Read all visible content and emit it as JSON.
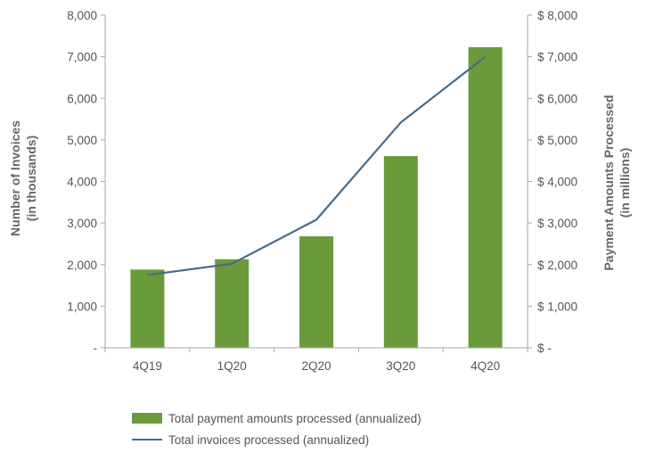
{
  "chart_data": {
    "type": "bar",
    "categories": [
      "4Q19",
      "1Q20",
      "2Q20",
      "3Q20",
      "4Q20"
    ],
    "series": [
      {
        "name": "Total payment amounts processed (annualized)",
        "type": "bar",
        "axis": "right",
        "values": [
          1880,
          2130,
          2680,
          4610,
          7230
        ],
        "color": "#6A9A3A"
      },
      {
        "name": "Total invoices processed (annualized)",
        "type": "line",
        "axis": "left",
        "values": [
          1750,
          2020,
          3080,
          5420,
          7000
        ],
        "color": "#4A6B86"
      }
    ],
    "y_left": {
      "label_line1": "Number of Invoices",
      "label_line2": "(in thousands)",
      "ylim": [
        0,
        8000
      ],
      "ticks": [
        "-",
        "1,000",
        "2,000",
        "3,000",
        "4,000",
        "5,000",
        "6,000",
        "7,000",
        "8,000"
      ]
    },
    "y_right": {
      "label_line1": "Payment Amounts Processed",
      "label_line2": "(in millions)",
      "ylim": [
        0,
        8000
      ],
      "currency": "$",
      "ticks": [
        "-",
        "1,000",
        "2,000",
        "3,000",
        "4,000",
        "5,000",
        "6,000",
        "7,000",
        "8,000"
      ]
    },
    "grid": false,
    "legend": "bottom"
  }
}
